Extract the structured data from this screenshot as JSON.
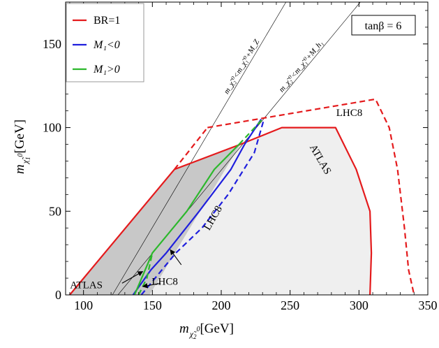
{
  "chart_data": {
    "type": "line",
    "xlabel": {
      "main": "m",
      "sub": "χ̃",
      "sub2": "2",
      "sup": "0",
      "unit": "[GeV]"
    },
    "ylabel": {
      "main": "m",
      "sub": "χ̃",
      "sub2": "1",
      "sup": "0",
      "unit": "[GeV]"
    },
    "xlim": [
      87,
      350
    ],
    "ylim": [
      0,
      175
    ],
    "xticks": [
      100,
      150,
      200,
      250,
      300,
      350
    ],
    "xtick_labels": [
      "100",
      "150",
      "200",
      "250",
      "300",
      "350"
    ],
    "yticks": [
      0,
      50,
      100,
      150
    ],
    "ytick_labels": [
      "0",
      "50",
      "100",
      "150"
    ],
    "tanbeta_label": "tanβ = 6",
    "legend": [
      {
        "label": "BR=1",
        "color": "#e41a1c",
        "math": false
      },
      {
        "label": "M₁<0",
        "color": "#1f1fdd",
        "math": true
      },
      {
        "label": "M₁>0",
        "color": "#2cb82c",
        "math": true
      }
    ],
    "series": [
      {
        "name": "BR=1",
        "color": "#e41a1c",
        "style": "solid",
        "points": [
          [
            90,
            0
          ],
          [
            166,
            75
          ]
        ]
      },
      {
        "name": "BR=1",
        "color": "#e41a1c",
        "style": "dashed",
        "points": [
          [
            166,
            75
          ],
          [
            190,
            100
          ]
        ]
      },
      {
        "name": "BR=1",
        "color": "#e41a1c",
        "style": "solid",
        "points": [
          [
            166,
            75
          ],
          [
            214,
            90
          ],
          [
            244,
            100
          ],
          [
            283,
            100
          ],
          [
            298,
            75
          ],
          [
            308,
            50
          ],
          [
            309,
            25
          ],
          [
            308,
            0
          ]
        ]
      },
      {
        "name": "BR=1",
        "color": "#e41a1c",
        "style": "dashed",
        "points": [
          [
            190,
            100
          ],
          [
            312,
            117
          ],
          [
            322,
            100
          ],
          [
            328,
            75
          ],
          [
            333,
            40
          ],
          [
            336,
            15
          ],
          [
            340,
            0
          ]
        ]
      },
      {
        "name": "M₁<0",
        "color": "#1f1fdd",
        "style": "solid",
        "points": [
          [
            136,
            0
          ],
          [
            149,
            15
          ],
          [
            160,
            25
          ],
          [
            184,
            50
          ],
          [
            207,
            75
          ],
          [
            217,
            90
          ]
        ]
      },
      {
        "name": "M₁<0",
        "color": "#1f1fdd",
        "style": "dashed",
        "points": [
          [
            142,
            0
          ],
          [
            150,
            8
          ],
          [
            167,
            25
          ],
          [
            186,
            40
          ],
          [
            205,
            60
          ],
          [
            224,
            85
          ],
          [
            231,
            105
          ]
        ]
      },
      {
        "name": "M₁<0",
        "color": "#1f1fdd",
        "style": "solid",
        "points": [
          [
            217,
            90
          ],
          [
            229,
            105
          ]
        ]
      },
      {
        "name": "M₁>0",
        "color": "#2cb82c",
        "style": "solid",
        "points": [
          [
            137,
            0
          ],
          [
            150,
            25
          ],
          [
            175,
            50
          ],
          [
            195,
            75
          ],
          [
            213,
            90
          ]
        ]
      },
      {
        "name": "M₁>0",
        "color": "#2cb82c",
        "style": "dashed",
        "points": [
          [
            213,
            90
          ],
          [
            230,
            105
          ]
        ]
      },
      {
        "name": "M₁>0",
        "color": "#2cb82c",
        "style": "dashed",
        "points": [
          [
            140,
            0
          ],
          [
            146,
            10
          ],
          [
            150,
            25
          ]
        ]
      }
    ],
    "threshold_lines": [
      {
        "label": "m_χ̃₂⁰<m_χ̃₁⁰+M_Z",
        "points": [
          [
            121,
            0
          ],
          [
            247,
            175
          ]
        ]
      },
      {
        "label": "m_χ̃₂⁰<m_χ̃₁⁰+M_h₁",
        "points": [
          [
            125,
            0
          ],
          [
            301,
            175
          ]
        ]
      }
    ],
    "regions": [
      {
        "fill": "#c8c8c8",
        "points": [
          [
            90,
            0
          ],
          [
            166,
            75
          ],
          [
            214,
            90
          ],
          [
            148,
            0
          ]
        ]
      },
      {
        "fill": "#efefef",
        "points": [
          [
            148,
            0
          ],
          [
            214,
            90
          ],
          [
            244,
            100
          ],
          [
            283,
            100
          ],
          [
            298,
            75
          ],
          [
            308,
            50
          ],
          [
            309,
            25
          ],
          [
            308,
            0
          ]
        ]
      }
    ],
    "annotations": [
      {
        "text": "LHC8",
        "x": 293,
        "y": 107,
        "rotate": 0
      },
      {
        "text": "ATLAS",
        "x": 270,
        "y": 80,
        "rotate": 60
      },
      {
        "text": "LHC8",
        "x": 196,
        "y": 45,
        "rotate": -60
      },
      {
        "text": "ATLAS",
        "x": 102,
        "y": 4,
        "rotate": 0
      },
      {
        "text": "LHC8",
        "x": 159,
        "y": 6,
        "rotate": 0
      }
    ],
    "arrows": [
      {
        "from": [
          128,
          7
        ],
        "to": [
          143,
          14
        ]
      },
      {
        "from": [
          156,
          7
        ],
        "to": [
          143,
          5
        ]
      },
      {
        "from": [
          171,
          18
        ],
        "to": [
          163,
          27
        ]
      }
    ]
  }
}
